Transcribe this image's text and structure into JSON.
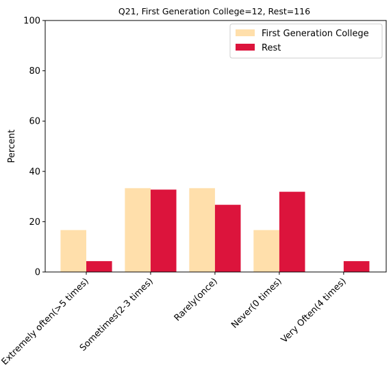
{
  "chart_data": {
    "type": "bar",
    "title": "Q21, First Generation College=12, Rest=116",
    "xlabel": "",
    "ylabel": "Percent",
    "ylim": [
      0,
      100
    ],
    "yticks": [
      0,
      20,
      40,
      60,
      80,
      100
    ],
    "categories": [
      "Extremely often(>5 times)",
      "Sometimes(2-3 times)",
      "Rarely(once)",
      "Never(0 times)",
      "Very Often(4 times)"
    ],
    "series": [
      {
        "name": "First Generation College",
        "color": "#FFDFAB",
        "values": [
          16.67,
          33.33,
          33.33,
          16.67,
          0
        ]
      },
      {
        "name": "Rest",
        "color": "#DC143C",
        "values": [
          4.31,
          32.76,
          26.72,
          31.9,
          4.31
        ]
      }
    ],
    "legend_position": "top-right",
    "grid": false
  }
}
